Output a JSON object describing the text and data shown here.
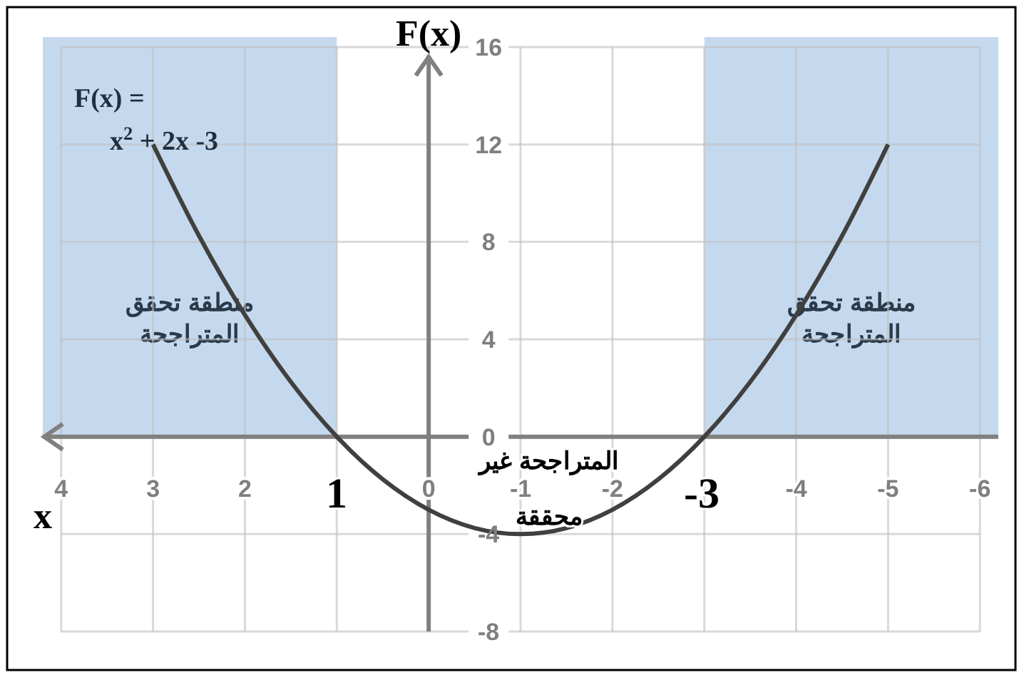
{
  "chart_data": {
    "type": "line",
    "xlabel": "x",
    "ylabel": "F(x)",
    "x": [
      3,
      2.5,
      2,
      1.5,
      1,
      0.5,
      0,
      -0.5,
      -1,
      -1.5,
      -2,
      -2.5,
      -3,
      -3.5,
      -4,
      -4.5,
      -5
    ],
    "series": [
      {
        "color": "#404040",
        "values": [
          12,
          8.25,
          5,
          2.25,
          0,
          -1.75,
          -3,
          -3.75,
          -4,
          -3.75,
          -3,
          -1.75,
          0,
          2.25,
          5,
          8.25,
          12
        ]
      }
    ],
    "xlim": [
      4.2,
      -6.2
    ],
    "ylim": [
      -8,
      16
    ],
    "xticks": [
      4,
      3,
      2,
      {
        "value": 1,
        "label": null
      },
      0,
      -1,
      -2,
      {
        "value": -3,
        "label": null
      },
      -4,
      -5,
      -6
    ],
    "yticks": [
      16,
      12,
      8,
      4,
      0,
      -4,
      -8
    ],
    "grid": true,
    "marker": "none",
    "line_style": "solid",
    "bands": [
      {
        "axis": "x",
        "from": 4.2,
        "to": 1,
        "label": "منطقة تحقق المتراجحة",
        "color": "#c5d9ee"
      },
      {
        "axis": "x",
        "from": -3,
        "to": -6.2,
        "label": "منطقة تحقق المتراجحة",
        "color": "#c5d9ee"
      }
    ],
    "annotations": [
      "F(x) =",
      "x$^{2}$ + 2x -3",
      "1",
      "-3",
      "المتراجحة غير محققة"
    ]
  }
}
